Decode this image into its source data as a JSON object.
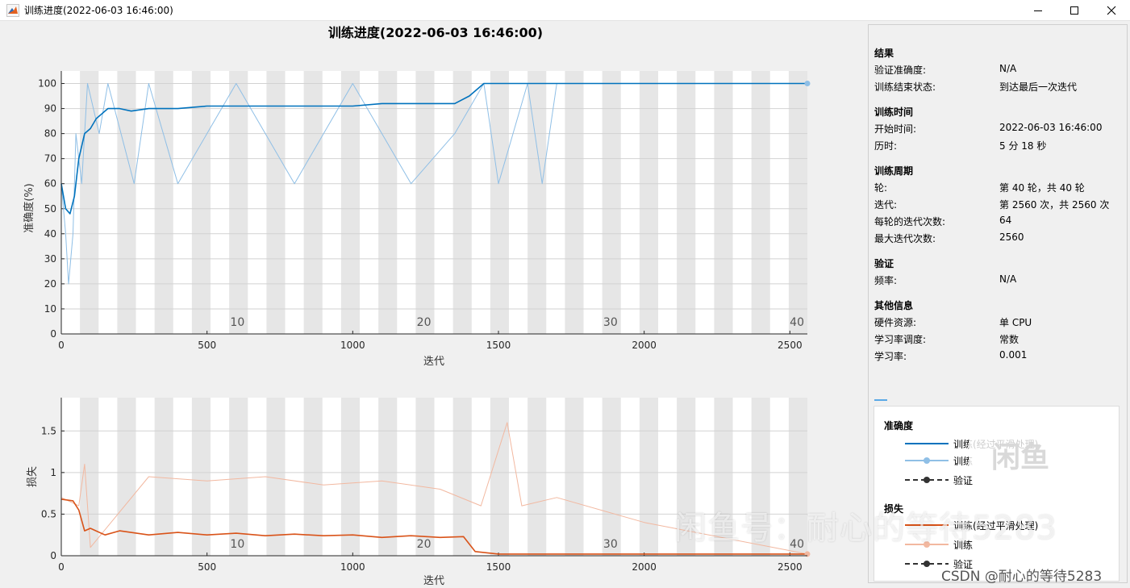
{
  "window": {
    "title": "训练进度(2022-06-03 16:46:00)"
  },
  "plot": {
    "main_title": "训练进度(2022-06-03 16:46:00)",
    "accuracy_ylabel": "准确度(%)",
    "loss_ylabel": "损失",
    "xlabel": "迭代"
  },
  "chart_data": [
    {
      "type": "line",
      "title": "训练进度(2022-06-03 16:46:00)",
      "xlabel": "迭代",
      "ylabel": "准确度(%)",
      "xlim": [
        0,
        2560
      ],
      "ylim": [
        0,
        105
      ],
      "x_ticks": [
        0,
        500,
        1000,
        1500,
        2000,
        2500
      ],
      "y_ticks": [
        0,
        10,
        20,
        30,
        40,
        50,
        60,
        70,
        80,
        90,
        100
      ],
      "epoch_labels": [
        "10",
        "20",
        "30",
        "40"
      ],
      "epochs": 40,
      "iterations_per_epoch": 64,
      "grid": true,
      "series": [
        {
          "name": "训练(经过平滑处理)",
          "color": "#0072bd",
          "points": [
            [
              0,
              60
            ],
            [
              15,
              50
            ],
            [
              30,
              48
            ],
            [
              45,
              55
            ],
            [
              60,
              70
            ],
            [
              80,
              80
            ],
            [
              100,
              82
            ],
            [
              120,
              86
            ],
            [
              140,
              88
            ],
            [
              160,
              90
            ],
            [
              200,
              90
            ],
            [
              240,
              89
            ],
            [
              300,
              90
            ],
            [
              400,
              90
            ],
            [
              500,
              91
            ],
            [
              600,
              91
            ],
            [
              700,
              91
            ],
            [
              800,
              91
            ],
            [
              900,
              91
            ],
            [
              1000,
              91
            ],
            [
              1100,
              92
            ],
            [
              1200,
              92
            ],
            [
              1300,
              92
            ],
            [
              1350,
              92
            ],
            [
              1400,
              95
            ],
            [
              1450,
              100
            ],
            [
              2560,
              100
            ]
          ]
        },
        {
          "name": "训练",
          "color": "#8fbfe6",
          "points": [
            [
              0,
              60
            ],
            [
              15,
              40
            ],
            [
              25,
              20
            ],
            [
              40,
              40
            ],
            [
              50,
              80
            ],
            [
              70,
              60
            ],
            [
              90,
              100
            ],
            [
              130,
              80
            ],
            [
              160,
              100
            ],
            [
              250,
              60
            ],
            [
              300,
              100
            ],
            [
              400,
              60
            ],
            [
              600,
              100
            ],
            [
              800,
              60
            ],
            [
              1000,
              100
            ],
            [
              1200,
              60
            ],
            [
              1350,
              80
            ],
            [
              1450,
              100
            ],
            [
              1500,
              60
            ],
            [
              1600,
              100
            ],
            [
              1650,
              60
            ],
            [
              1700,
              100
            ],
            [
              2560,
              100
            ]
          ]
        }
      ]
    },
    {
      "type": "line",
      "xlabel": "迭代",
      "ylabel": "损失",
      "xlim": [
        0,
        2560
      ],
      "ylim": [
        0,
        1.9
      ],
      "x_ticks": [
        0,
        500,
        1000,
        1500,
        2000,
        2500
      ],
      "y_ticks": [
        0,
        0.5,
        1,
        1.5
      ],
      "epoch_labels": [
        "10",
        "20",
        "30",
        "40"
      ],
      "grid": true,
      "series": [
        {
          "name": "训练(经过平滑处理)",
          "color": "#d95319",
          "points": [
            [
              0,
              0.68
            ],
            [
              40,
              0.66
            ],
            [
              60,
              0.55
            ],
            [
              80,
              0.3
            ],
            [
              100,
              0.33
            ],
            [
              150,
              0.25
            ],
            [
              200,
              0.3
            ],
            [
              300,
              0.25
            ],
            [
              400,
              0.28
            ],
            [
              500,
              0.25
            ],
            [
              600,
              0.27
            ],
            [
              700,
              0.24
            ],
            [
              800,
              0.26
            ],
            [
              900,
              0.24
            ],
            [
              1000,
              0.25
            ],
            [
              1100,
              0.22
            ],
            [
              1200,
              0.24
            ],
            [
              1300,
              0.22
            ],
            [
              1380,
              0.23
            ],
            [
              1420,
              0.05
            ],
            [
              1500,
              0.02
            ],
            [
              2560,
              0.02
            ]
          ]
        },
        {
          "name": "训练",
          "color": "#f2b8a0",
          "points": [
            [
              0,
              0.7
            ],
            [
              60,
              0.6
            ],
            [
              80,
              1.1
            ],
            [
              100,
              0.1
            ],
            [
              300,
              0.95
            ],
            [
              500,
              0.9
            ],
            [
              700,
              0.95
            ],
            [
              900,
              0.85
            ],
            [
              1100,
              0.9
            ],
            [
              1300,
              0.8
            ],
            [
              1440,
              0.6
            ],
            [
              1530,
              1.6
            ],
            [
              1580,
              0.6
            ],
            [
              1700,
              0.7
            ],
            [
              2000,
              0.4
            ],
            [
              2560,
              0.02
            ]
          ]
        }
      ]
    }
  ],
  "panel": {
    "sections": [
      {
        "title": "结果",
        "rows": [
          {
            "label": "验证准确度:",
            "value": "N/A"
          },
          {
            "label": "训练结束状态:",
            "value": "到达最后一次迭代"
          }
        ]
      },
      {
        "title": "训练时间",
        "rows": [
          {
            "label": "开始时间:",
            "value": "2022-06-03 16:46:00"
          },
          {
            "label": "历时:",
            "value": "5 分 18 秒"
          }
        ]
      },
      {
        "title": "训练周期",
        "rows": [
          {
            "label": "轮:",
            "value": "第 40 轮，共 40 轮"
          },
          {
            "label": "迭代:",
            "value": "第 2560 次，共 2560 次"
          },
          {
            "label": "每轮的迭代次数:",
            "value": "64"
          },
          {
            "label": "最大迭代次数:",
            "value": "2560"
          }
        ]
      },
      {
        "title": "验证",
        "rows": [
          {
            "label": "频率:",
            "value": "N/A"
          }
        ]
      },
      {
        "title": "其他信息",
        "rows": [
          {
            "label": "硬件资源:",
            "value": "单 CPU"
          },
          {
            "label": "学习率调度:",
            "value": "常数"
          },
          {
            "label": "学习率:",
            "value": "0.001"
          }
        ]
      }
    ]
  },
  "legend": {
    "accuracy_title": "准确度",
    "loss_title": "损失",
    "smoothed_label": "训练(经过平滑处理)",
    "train_label": "训练",
    "validation_label": "验证",
    "colors": {
      "acc_smoothed": "#0072bd",
      "acc_train": "#8fbfe6",
      "loss_smoothed": "#d95319",
      "loss_train": "#f2b8a0",
      "validation": "#333333"
    }
  },
  "watermarks": {
    "big": "闲鱼号：耐心的等待5283",
    "logo": "闲鱼",
    "csdn": "CSDN @耐心的等待5283"
  }
}
